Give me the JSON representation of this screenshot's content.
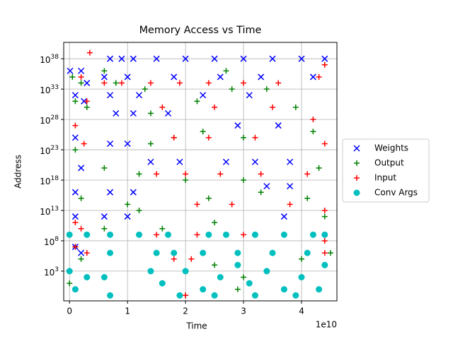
{
  "chart_data": {
    "type": "scatter",
    "title": "Memory Access vs Time",
    "x_label": "Time",
    "y_label": "Address",
    "x_offset_label": "1e10",
    "yscale": "log",
    "grid": true,
    "legend": "outside right",
    "xlim": [
      -1000000000.0,
      46100000000.0
    ],
    "xticks": [
      0,
      {
        "value": 10000000000.0,
        "label": "1"
      },
      {
        "value": 20000000000.0,
        "label": "2"
      },
      {
        "value": 30000000000.0,
        "label": "3"
      },
      {
        "value": 40000000000.0,
        "label": "4"
      }
    ],
    "ylim": [
      0.0126,
      5e+40
    ],
    "yticks": [
      {
        "value": 1000.0,
        "label": "10^3"
      },
      {
        "value": 100000000.0,
        "label": "10^8"
      },
      {
        "value": 10000000000000.0,
        "label": "10^13"
      },
      {
        "value": 1e+18,
        "label": "10^18"
      },
      {
        "value": 1e+23,
        "label": "10^23"
      },
      {
        "value": 1e+28,
        "label": "10^28"
      },
      {
        "value": 1e+33,
        "label": "10^33"
      },
      {
        "value": 1e+38,
        "label": "10^38"
      }
    ],
    "series": [
      {
        "name": "Weights",
        "color": "#0000ff",
        "marker": "x",
        "x": [
          100000000.0,
          2000000000.0,
          3000000000.0,
          1000000000.0,
          2500000000.0,
          7000000000.0,
          9000000000.0,
          11000000000.0,
          15000000000.0,
          20000000000.0,
          25000000000.0,
          30000000000.0,
          35000000000.0,
          40000000000.0,
          44000000000.0,
          6000000000.0,
          10000000000.0,
          18000000000.0,
          26000000000.0,
          33000000000.0,
          42000000000.0,
          7000000000.0,
          12000000000.0,
          23000000000.0,
          31000000000.0,
          8000000000.0,
          11000000000.0,
          17000000000.0,
          29000000000.0,
          36000000000.0,
          1000000000.0,
          7000000000.0,
          10000000000.0,
          14000000000.0,
          19000000000.0,
          27000000000.0,
          32000000000.0,
          38000000000.0,
          2000000000.0,
          1000000000.0,
          7000000000.0,
          11000000000.0,
          34000000000.0,
          38000000000.0,
          1000000000.0,
          6000000000.0,
          10000000000.0,
          37000000000.0,
          1000000000.0,
          2000000000.0
        ],
        "values": [
          1e+36,
          1e+36,
          1e+34,
          1e+32,
          1e+31,
          1e+38,
          1e+38,
          1e+38,
          1e+38,
          1e+38,
          1e+38,
          1e+38,
          1e+38,
          1e+38,
          1e+38,
          1e+35,
          1e+35,
          1e+35,
          1e+35,
          1e+35,
          1e+35,
          1e+32,
          1e+32,
          1e+32,
          1e+32,
          1e+29,
          1e+29,
          1e+29,
          1e+27,
          1e+27,
          1e+25,
          1e+24,
          1e+24,
          1e+21,
          1e+21,
          1e+21,
          1e+21,
          1e+21,
          1e+20,
          1e+16,
          1e+16,
          1e+16,
          1e+17,
          1e+17,
          1000000000000.0,
          1000000000000.0,
          1000000000000.0,
          1000000000000.0,
          10000000.0,
          1000000.0
        ]
      },
      {
        "name": "Output",
        "color": "#008000",
        "marker": "+",
        "x": [
          500000000.0,
          2000000000.0,
          1000000000.0,
          3000000000.0,
          6000000000.0,
          8000000000.0,
          13000000000.0,
          14000000000.0,
          22000000000.0,
          27000000000.0,
          28000000000.0,
          34000000000.0,
          39000000000.0,
          44000000000.0,
          42000000000.0,
          1000000000.0,
          14000000000.0,
          18000000000.0,
          23000000000.0,
          30000000000.0,
          6000000000.0,
          12000000000.0,
          20000000000.0,
          30000000000.0,
          43000000000.0,
          2000000000.0,
          10000000000.0,
          12000000000.0,
          24000000000.0,
          33000000000.0,
          41000000000.0,
          6000000000.0,
          16000000000.0,
          25000000000.0,
          37000000000.0,
          44000000000.0,
          1000000000.0,
          2000000000.0,
          25000000000.0,
          30000000000.0,
          40000000000.0,
          0,
          20000000000.0,
          29000000000.0,
          45000000000.0
        ],
        "values": [
          1e+35,
          1e+34,
          1e+31,
          1e+30,
          1e+36,
          1e+34,
          1e+33,
          1e+29,
          1e+31,
          1e+36,
          1e+33,
          1e+33,
          1e+30,
          1e+37,
          1e+26,
          1e+23,
          1e+24,
          1e+25,
          1e+26,
          1e+25,
          1e+20,
          1e+19,
          1e+18,
          1e+18,
          1e+20,
          1000000000000000.0,
          100000000000000.0,
          10000000000000.0,
          1000000000000000.0,
          1e+16,
          1000000000000000.0,
          10000000000.0,
          10000000000.0,
          100000000000.0,
          1000000000.0,
          1000000000000.0,
          10000000.0,
          100000.0,
          10000.0,
          100.0,
          100000.0,
          10,
          0.1,
          1,
          1000000.0
        ]
      },
      {
        "name": "Input",
        "color": "#ff0000",
        "marker": "+",
        "x": [
          3500000000.0,
          2000000000.0,
          3000000000.0,
          1000000000.0,
          2500000000.0,
          6000000000.0,
          9000000000.0,
          14000000000.0,
          19000000000.0,
          24000000000.0,
          30000000000.0,
          36000000000.0,
          43000000000.0,
          44000000000.0,
          16000000000.0,
          25000000000.0,
          35000000000.0,
          42000000000.0,
          18000000000.0,
          24000000000.0,
          32000000000.0,
          44000000000.0,
          15000000000.0,
          20000000000.0,
          26000000000.0,
          33000000000.0,
          41000000000.0,
          22000000000.0,
          28000000000.0,
          38000000000.0,
          44000000000.0,
          1000000000.0,
          2000000000.0,
          15000000000.0,
          22000000000.0,
          30000000000.0,
          44000000000.0,
          1000000000.0,
          3000000000.0,
          18000000000.0,
          21000000000.0,
          20000000000.0,
          44000000000.0
        ],
        "values": [
          1e+39,
          1e+35,
          1e+31,
          1e+27,
          1e+24,
          1e+34,
          1e+34,
          1e+34,
          1e+34,
          1e+34,
          1e+34,
          1e+34,
          1e+35,
          1e+37,
          1e+30,
          1e+30,
          1e+30,
          1e+28,
          1e+25,
          1e+25,
          1e+25,
          1e+24,
          1e+19,
          1e+19,
          1e+19,
          1e+19,
          1e+19,
          100000000000000.0,
          100000000000000.0,
          100000000000000.0,
          10000000000000.0,
          100000000000.0,
          10000000000.0,
          1000000000.0,
          1000000000.0,
          1000000000.0,
          100000000.0,
          10000000.0,
          1000000.0,
          100000.0,
          100000.0,
          0.1,
          1000000.0
        ]
      },
      {
        "name": "Conv Args",
        "color": "#00bfbf",
        "marker": "o",
        "x": [
          0,
          3000000000.0,
          7000000000.0,
          12000000000.0,
          17000000000.0,
          24000000000.0,
          27000000000.0,
          32000000000.0,
          37000000000.0,
          42000000000.0,
          44000000000.0,
          7000000000.0,
          15000000000.0,
          18000000000.0,
          23000000000.0,
          29000000000.0,
          35000000000.0,
          41000000000.0,
          0,
          3000000000.0,
          6000000000.0,
          14000000000.0,
          16000000000.0,
          20000000000.0,
          23000000000.0,
          26000000000.0,
          29000000000.0,
          31000000000.0,
          34000000000.0,
          37000000000.0,
          40000000000.0,
          43000000000.0,
          1000000000.0,
          7000000000.0,
          19000000000.0,
          25000000000.0,
          32000000000.0,
          39000000000.0,
          44000000000.0
        ],
        "values": [
          1000000000.0,
          1000000000.0,
          1000000000.0,
          1000000000.0,
          1000000000.0,
          1000000000.0,
          1000000000.0,
          1000000000.0,
          1000000000.0,
          1000000000.0,
          1000000000.0,
          1000000.0,
          1000000.0,
          1000000.0,
          1000000.0,
          1000000.0,
          1000000.0,
          1000000.0,
          1000.0,
          100.0,
          100.0,
          1000.0,
          10,
          1000.0,
          1,
          100.0,
          10000.0,
          10,
          1000.0,
          1,
          100.0,
          1,
          1,
          0.1,
          0.1,
          0.1,
          0.1,
          0.1,
          10000.0
        ]
      }
    ]
  }
}
